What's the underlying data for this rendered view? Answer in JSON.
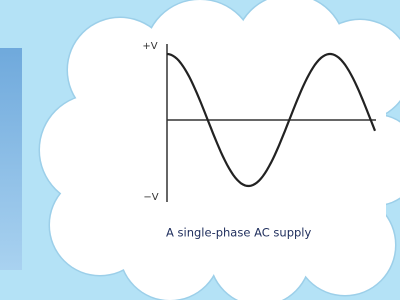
{
  "diagram": {
    "axis_labels": {
      "top": "+V",
      "bottom": "−V"
    },
    "caption": "A single-phase AC supply"
  }
}
